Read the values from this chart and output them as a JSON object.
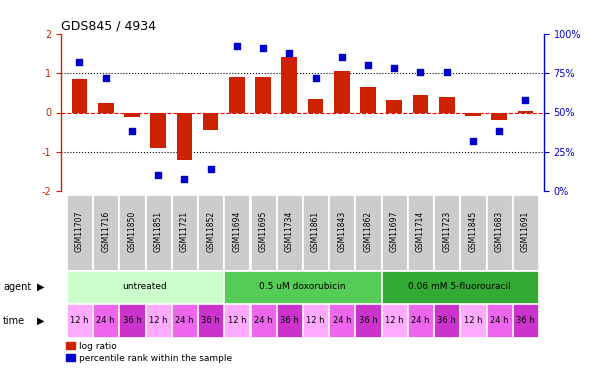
{
  "title": "GDS845 / 4934",
  "samples": [
    "GSM11707",
    "GSM11716",
    "GSM11850",
    "GSM11851",
    "GSM11721",
    "GSM11852",
    "GSM11694",
    "GSM11695",
    "GSM11734",
    "GSM11861",
    "GSM11843",
    "GSM11862",
    "GSM11697",
    "GSM11714",
    "GSM11723",
    "GSM11845",
    "GSM11683",
    "GSM11691"
  ],
  "log_ratio": [
    0.85,
    0.25,
    -0.12,
    -0.9,
    -1.2,
    -0.45,
    0.9,
    0.9,
    1.4,
    0.35,
    1.05,
    0.65,
    0.32,
    0.45,
    0.4,
    -0.1,
    -0.2,
    0.05
  ],
  "percentile": [
    82,
    72,
    38,
    10,
    8,
    14,
    92,
    91,
    88,
    72,
    85,
    80,
    78,
    76,
    76,
    32,
    38,
    58
  ],
  "agent_groups": [
    {
      "label": "untreated",
      "start": 0,
      "end": 5,
      "color": "#ccffcc"
    },
    {
      "label": "0.5 uM doxorubicin",
      "start": 6,
      "end": 11,
      "color": "#55cc55"
    },
    {
      "label": "0.06 mM 5-fluorouracil",
      "start": 12,
      "end": 17,
      "color": "#33aa33"
    }
  ],
  "time_colors": [
    "#ffaaff",
    "#ee66ee",
    "#cc33cc"
  ],
  "bar_color": "#cc2200",
  "dot_color": "#0000cc",
  "bg_color": "#ffffff",
  "ylim_left": [
    -2,
    2
  ],
  "ylim_right": [
    0,
    100
  ],
  "yticks_left": [
    -2,
    -1,
    0,
    1,
    2
  ],
  "yticks_right": [
    0,
    25,
    50,
    75,
    100
  ],
  "yticklabels_right": [
    "0%",
    "25%",
    "50%",
    "75%",
    "100%"
  ],
  "title_fontsize": 9,
  "legend_log_ratio": "log ratio",
  "legend_percentile": "percentile rank within the sample",
  "times": [
    "12 h",
    "24 h",
    "36 h",
    "12 h",
    "24 h",
    "36 h",
    "12 h",
    "24 h",
    "36 h",
    "12 h",
    "24 h",
    "36 h",
    "12 h",
    "24 h",
    "36 h",
    "12 h",
    "24 h",
    "36 h"
  ]
}
